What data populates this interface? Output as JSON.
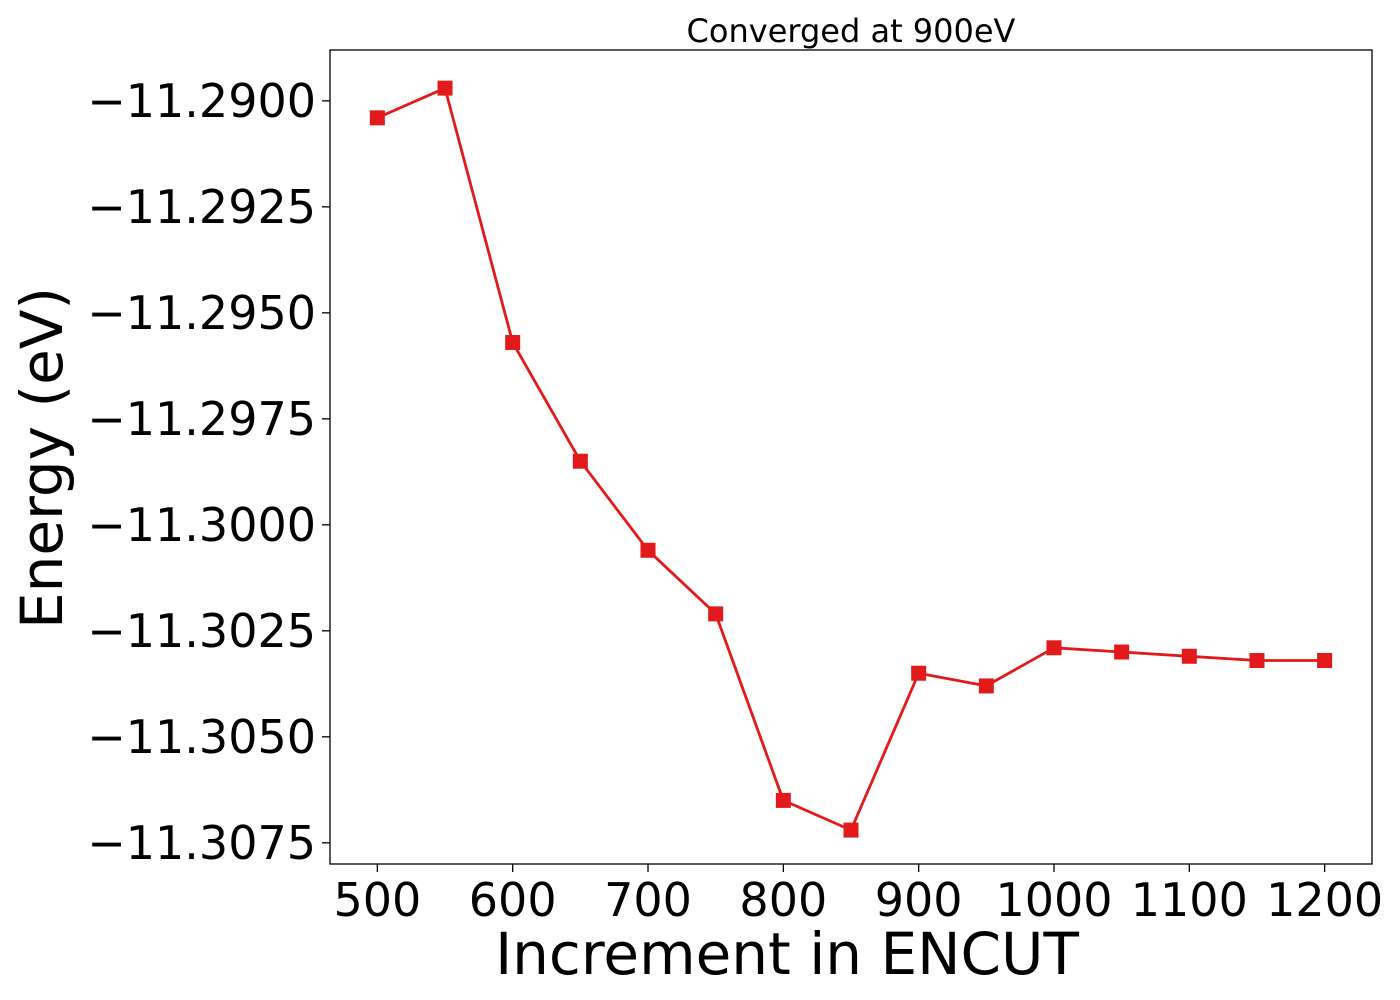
{
  "chart_data": {
    "type": "line",
    "title": "Converged at 900eV",
    "xlabel": "Increment in ENCUT",
    "ylabel": "Energy (eV)",
    "xlim": [
      465,
      1235
    ],
    "ylim": [
      -11.308,
      -11.2888
    ],
    "x_ticks": [
      500,
      600,
      700,
      800,
      900,
      1000,
      1100,
      1200
    ],
    "x_tick_labels": [
      "500",
      "600",
      "700",
      "800",
      "900",
      "1000",
      "1100",
      "1200"
    ],
    "y_ticks": [
      -11.29,
      -11.2925,
      -11.295,
      -11.2975,
      -11.3,
      -11.3025,
      -11.305,
      -11.3075
    ],
    "y_tick_labels": [
      "−11.2900",
      "−11.2925",
      "−11.2950",
      "−11.2975",
      "−11.3000",
      "−11.3025",
      "−11.3050",
      "−11.3075"
    ],
    "grid": false,
    "legend": "none",
    "series": [
      {
        "color": "#e31a1c",
        "marker": "square",
        "x": [
          500,
          550,
          600,
          650,
          700,
          750,
          800,
          850,
          900,
          950,
          1000,
          1050,
          1100,
          1150,
          1200
        ],
        "y": [
          -11.2904,
          -11.2897,
          -11.2957,
          -11.2985,
          -11.3006,
          -11.3021,
          -11.3065,
          -11.3072,
          -11.3035,
          -11.3038,
          -11.3029,
          -11.303,
          -11.3031,
          -11.3032,
          -11.3032
        ]
      }
    ]
  }
}
